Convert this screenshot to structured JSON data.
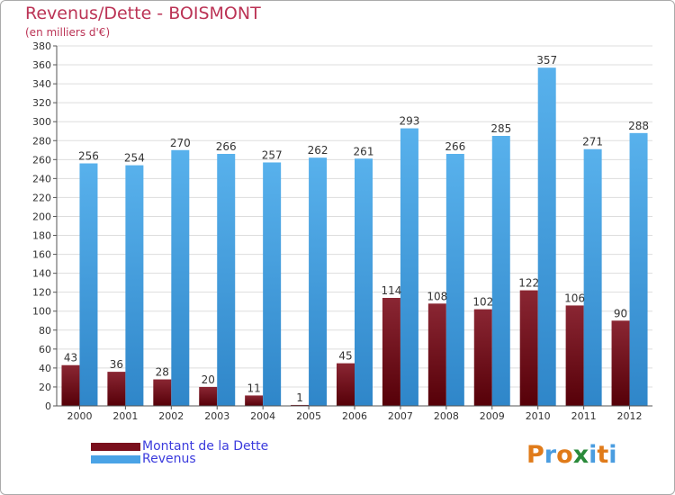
{
  "header": {
    "title": "Revenus/Dette - BOISMONT",
    "subtitle": "(en milliers d'€)"
  },
  "legend": {
    "items": [
      {
        "label": "Montant de la Dette",
        "color": "#7a0f1c"
      },
      {
        "label": "Revenus",
        "color": "#4aa3e6"
      }
    ]
  },
  "logo": {
    "text": "Proxiti",
    "letter_colors": [
      "#e07b1a",
      "#4b9de0",
      "#e07b1a",
      "#2a8a3a",
      "#4b9de0",
      "#e07b1a",
      "#4b9de0"
    ]
  },
  "chart_data": {
    "type": "bar",
    "categories": [
      "2000",
      "2001",
      "2002",
      "2003",
      "2004",
      "2005",
      "2006",
      "2007",
      "2008",
      "2009",
      "2010",
      "2011",
      "2012"
    ],
    "series": [
      {
        "name": "Montant de la Dette",
        "color": "#7a0f1c",
        "values": [
          43,
          36,
          28,
          20,
          11,
          1,
          45,
          114,
          108,
          102,
          122,
          106,
          90
        ]
      },
      {
        "name": "Revenus",
        "color": "#4aa3e6",
        "values": [
          256,
          254,
          270,
          266,
          257,
          262,
          261,
          293,
          266,
          285,
          357,
          271,
          288
        ]
      }
    ],
    "yticks": [
      0,
      20,
      40,
      60,
      80,
      100,
      120,
      140,
      160,
      180,
      200,
      220,
      240,
      260,
      280,
      300,
      320,
      340,
      360,
      380
    ],
    "ylim": [
      0,
      380
    ],
    "grid": true,
    "title": "Revenus/Dette - BOISMONT",
    "ylabel": "(en milliers d'€)",
    "legend_position": "bottom-left"
  }
}
